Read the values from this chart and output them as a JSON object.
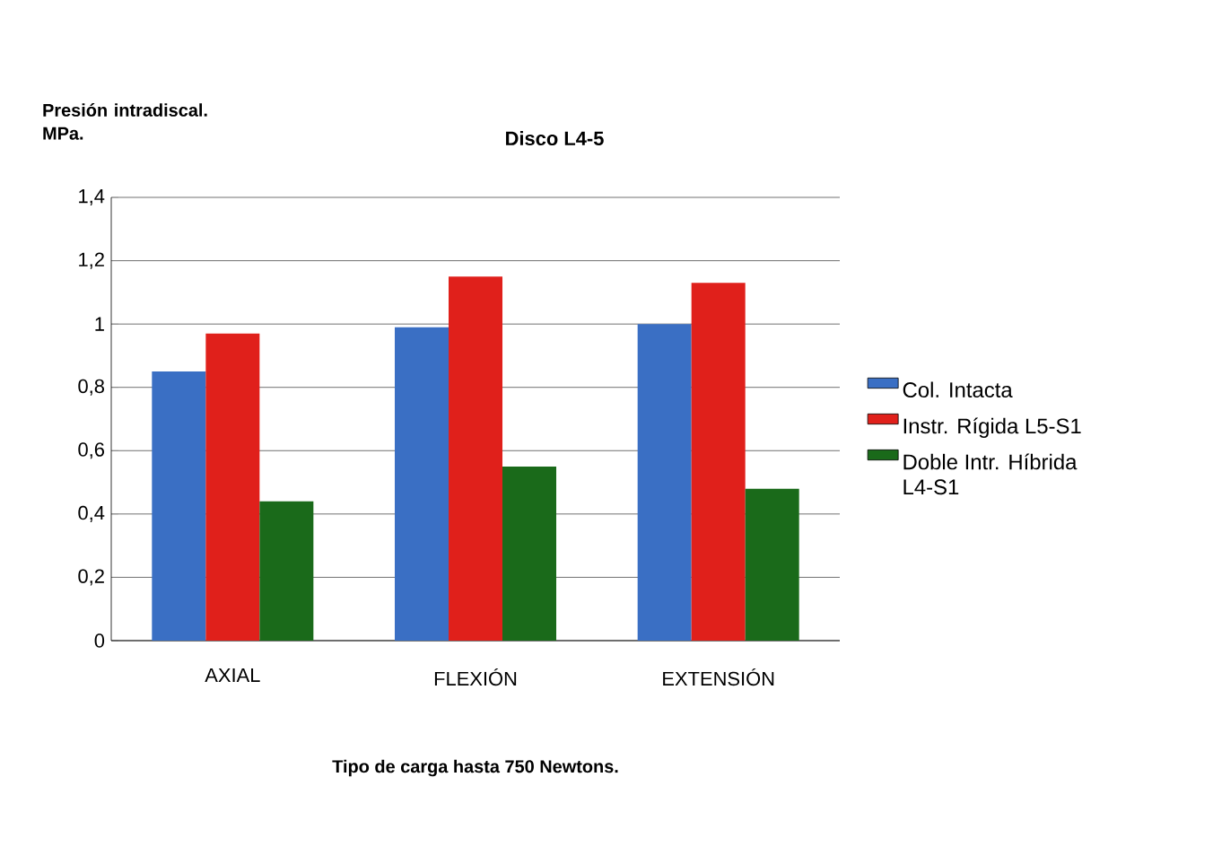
{
  "chart_data": {
    "type": "bar",
    "title": "Disco L4-5",
    "ylabel": "Presión intradiscal. MPa.",
    "xlabel": "Tipo de carga hasta 750 Newtons.",
    "categories": [
      "AXIAL",
      "FLEXIÓN",
      "EXTENSIÓN"
    ],
    "series": [
      {
        "name": "Col. Intacta",
        "color": "#3a6fc4",
        "values": [
          0.85,
          0.99,
          1.0
        ]
      },
      {
        "name": "Instr. Rígida L5-S1",
        "color": "#e0201b",
        "values": [
          0.97,
          1.15,
          1.13
        ]
      },
      {
        "name": "Doble Intr. Híbrida L4-S1",
        "color": "#1a6a1a",
        "values": [
          0.44,
          0.55,
          0.48
        ]
      }
    ],
    "ylim": [
      0,
      1.4
    ],
    "yticks": [
      0,
      {
        "value": 0.2,
        "label": "0,2"
      },
      {
        "value": 0.4,
        "label": "0,4"
      },
      {
        "value": 0.6,
        "label": "0,6"
      },
      {
        "value": 0.8,
        "label": "0,8"
      },
      1,
      {
        "value": 1.2,
        "label": "1,2"
      },
      {
        "value": 1.4,
        "label": "1,4"
      }
    ],
    "grid": "y",
    "legend": "right"
  }
}
